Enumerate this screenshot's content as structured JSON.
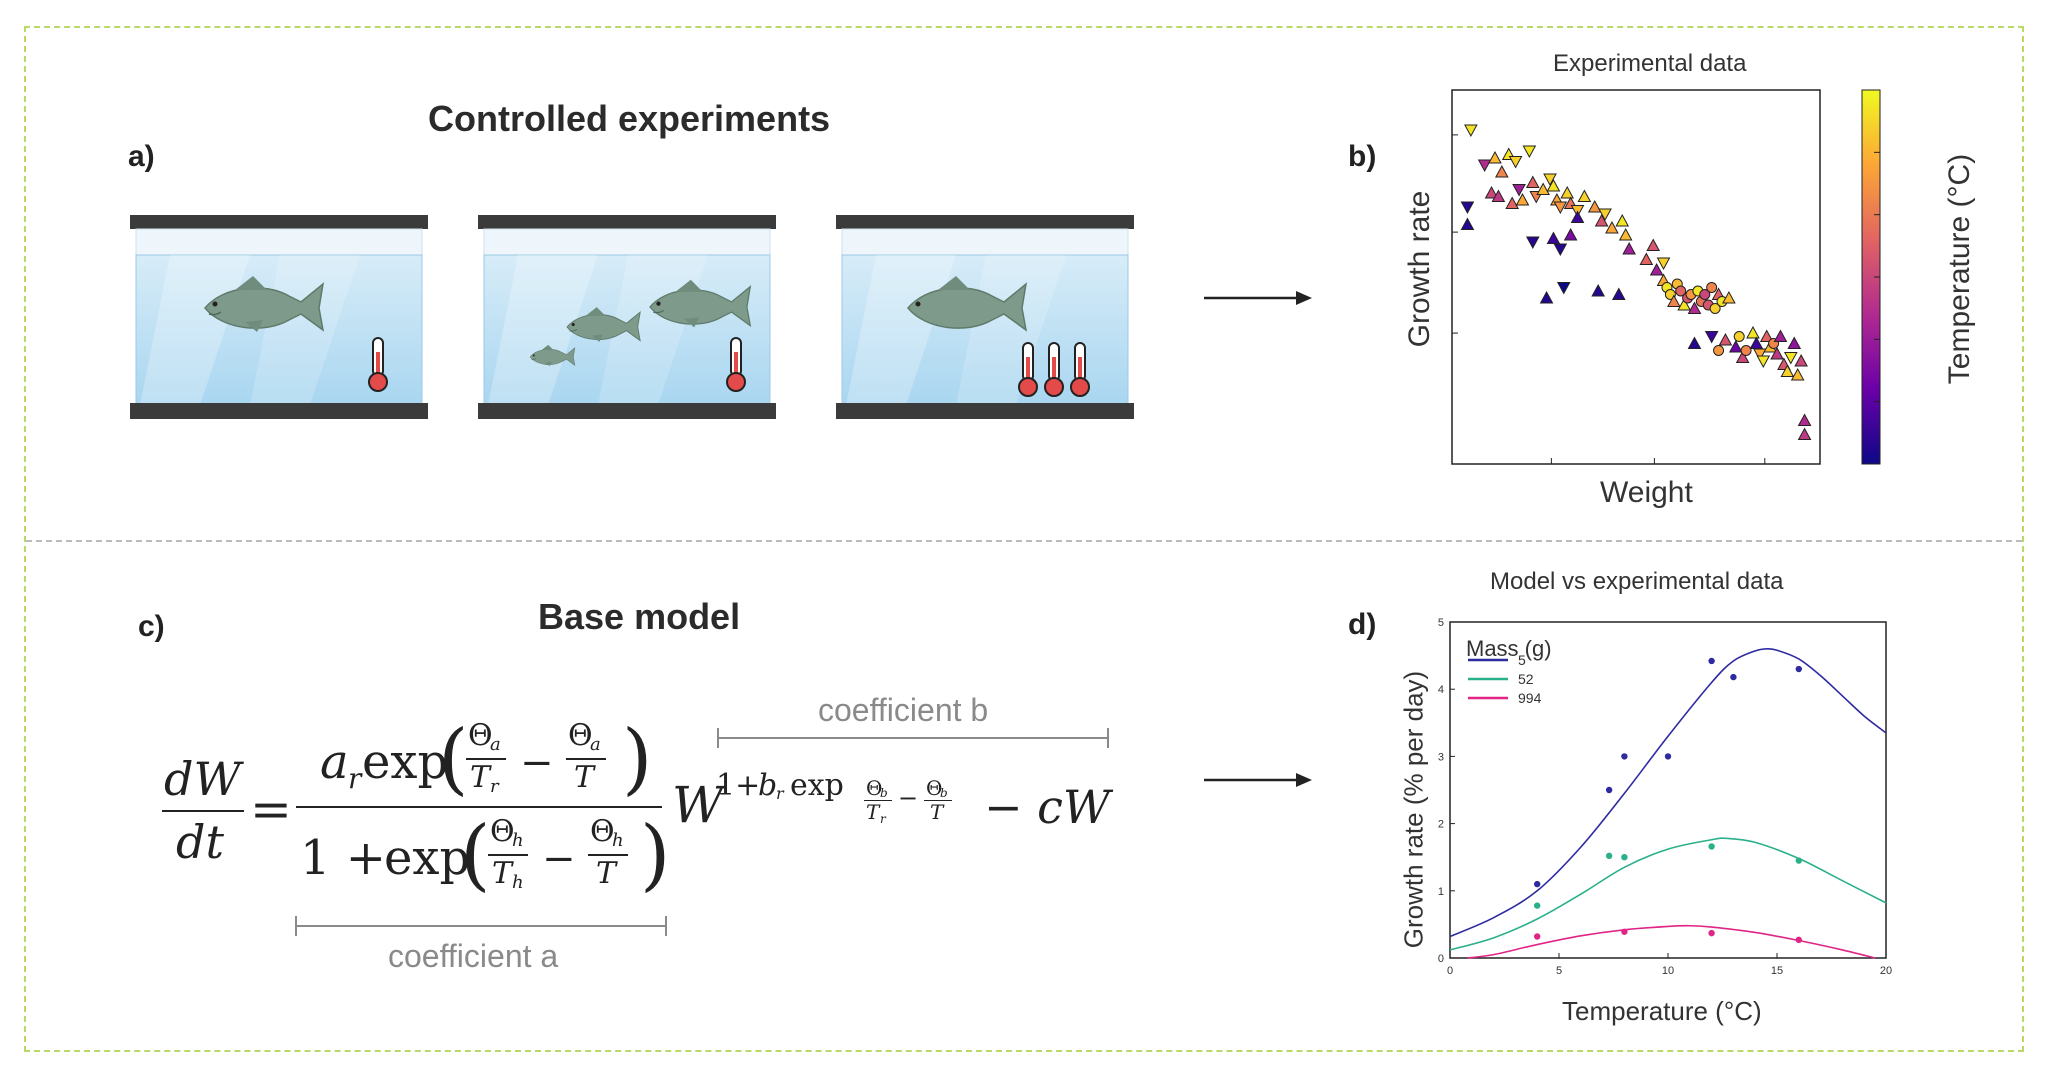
{
  "panel_a": {
    "letter": "a)",
    "title": "Controlled experiments"
  },
  "panel_b": {
    "letter": "b)",
    "chart_data": {
      "type": "scatter",
      "title": "Experimental data",
      "xlabel": "Weight",
      "ylabel": "Growth rate",
      "colorbar_label": "Temperature (°C)",
      "colormap": [
        "#0d0887",
        "#6a00a8",
        "#b12a90",
        "#e16462",
        "#fca636",
        "#f0f921"
      ],
      "xscale": "log",
      "yscale": "log",
      "markers": [
        "triangle-up",
        "triangle-down",
        "circle"
      ],
      "points": [
        [
          0.02,
          0.92,
          "down",
          0.95
        ],
        [
          0.01,
          0.7,
          "down",
          0.05
        ],
        [
          0.01,
          0.65,
          "up",
          0.05
        ],
        [
          0.06,
          0.82,
          "down",
          0.4
        ],
        [
          0.09,
          0.84,
          "up",
          0.85
        ],
        [
          0.11,
          0.8,
          "up",
          0.7
        ],
        [
          0.13,
          0.85,
          "up",
          0.95
        ],
        [
          0.15,
          0.83,
          "down",
          0.9
        ],
        [
          0.19,
          0.86,
          "down",
          0.95
        ],
        [
          0.08,
          0.74,
          "up",
          0.5
        ],
        [
          0.1,
          0.73,
          "up",
          0.45
        ],
        [
          0.14,
          0.71,
          "up",
          0.6
        ],
        [
          0.16,
          0.75,
          "down",
          0.35
        ],
        [
          0.17,
          0.72,
          "up",
          0.8
        ],
        [
          0.2,
          0.77,
          "up",
          0.6
        ],
        [
          0.21,
          0.73,
          "down",
          0.7
        ],
        [
          0.23,
          0.75,
          "up",
          0.85
        ],
        [
          0.25,
          0.78,
          "down",
          0.9
        ],
        [
          0.26,
          0.76,
          "up",
          0.95
        ],
        [
          0.27,
          0.72,
          "up",
          0.8
        ],
        [
          0.28,
          0.7,
          "down",
          0.75
        ],
        [
          0.3,
          0.74,
          "up",
          0.9
        ],
        [
          0.31,
          0.71,
          "up",
          0.65
        ],
        [
          0.33,
          0.69,
          "down",
          0.85
        ],
        [
          0.35,
          0.73,
          "up",
          0.9
        ],
        [
          0.38,
          0.7,
          "up",
          0.75
        ],
        [
          0.4,
          0.66,
          "up",
          0.55
        ],
        [
          0.41,
          0.68,
          "down",
          0.9
        ],
        [
          0.43,
          0.64,
          "up",
          0.8
        ],
        [
          0.46,
          0.66,
          "up",
          0.95
        ],
        [
          0.47,
          0.62,
          "up",
          0.85
        ],
        [
          0.48,
          0.58,
          "up",
          0.35
        ],
        [
          0.2,
          0.6,
          "down",
          0.05
        ],
        [
          0.26,
          0.61,
          "up",
          0.1
        ],
        [
          0.28,
          0.58,
          "down",
          0.05
        ],
        [
          0.31,
          0.62,
          "up",
          0.25
        ],
        [
          0.33,
          0.67,
          "up",
          0.1
        ],
        [
          0.24,
          0.44,
          "up",
          0.05
        ],
        [
          0.29,
          0.47,
          "down",
          0.0
        ],
        [
          0.39,
          0.46,
          "up",
          0.05
        ],
        [
          0.45,
          0.45,
          "up",
          0.05
        ],
        [
          0.53,
          0.55,
          "up",
          0.6
        ],
        [
          0.55,
          0.59,
          "up",
          0.55
        ],
        [
          0.56,
          0.52,
          "up",
          0.35
        ],
        [
          0.58,
          0.54,
          "down",
          0.9
        ],
        [
          0.58,
          0.49,
          "up",
          0.8
        ],
        [
          0.59,
          0.47,
          "circle",
          0.95
        ],
        [
          0.6,
          0.45,
          "circle",
          0.9
        ],
        [
          0.61,
          0.43,
          "up",
          0.7
        ],
        [
          0.62,
          0.48,
          "circle",
          0.85
        ],
        [
          0.63,
          0.46,
          "circle",
          0.6
        ],
        [
          0.64,
          0.42,
          "up",
          0.95
        ],
        [
          0.65,
          0.44,
          "circle",
          0.55
        ],
        [
          0.66,
          0.45,
          "circle",
          0.75
        ],
        [
          0.67,
          0.41,
          "up",
          0.4
        ],
        [
          0.68,
          0.46,
          "circle",
          0.95
        ],
        [
          0.69,
          0.43,
          "circle",
          0.65
        ],
        [
          0.7,
          0.45,
          "circle",
          0.5
        ],
        [
          0.71,
          0.42,
          "circle",
          0.55
        ],
        [
          0.72,
          0.47,
          "circle",
          0.7
        ],
        [
          0.73,
          0.41,
          "circle",
          0.9
        ],
        [
          0.74,
          0.45,
          "up",
          0.6
        ],
        [
          0.75,
          0.43,
          "circle",
          0.95
        ],
        [
          0.77,
          0.44,
          "up",
          0.85
        ],
        [
          0.67,
          0.31,
          "up",
          0.05
        ],
        [
          0.72,
          0.33,
          "down",
          0.1
        ],
        [
          0.74,
          0.29,
          "circle",
          0.75
        ],
        [
          0.76,
          0.32,
          "up",
          0.55
        ],
        [
          0.79,
          0.3,
          "up",
          0.2
        ],
        [
          0.8,
          0.33,
          "circle",
          0.9
        ],
        [
          0.81,
          0.27,
          "up",
          0.5
        ],
        [
          0.82,
          0.29,
          "circle",
          0.7
        ],
        [
          0.84,
          0.34,
          "up",
          0.95
        ],
        [
          0.85,
          0.31,
          "up",
          0.1
        ],
        [
          0.86,
          0.28,
          "down",
          0.8
        ],
        [
          0.87,
          0.26,
          "down",
          0.95
        ],
        [
          0.88,
          0.33,
          "up",
          0.6
        ],
        [
          0.89,
          0.3,
          "up",
          0.85
        ],
        [
          0.9,
          0.31,
          "circle",
          0.7
        ],
        [
          0.91,
          0.28,
          "up",
          0.45
        ],
        [
          0.92,
          0.33,
          "up",
          0.35
        ],
        [
          0.93,
          0.25,
          "up",
          0.55
        ],
        [
          0.94,
          0.23,
          "up",
          0.9
        ],
        [
          0.95,
          0.27,
          "down",
          0.95
        ],
        [
          0.96,
          0.31,
          "up",
          0.3
        ],
        [
          0.97,
          0.22,
          "up",
          0.85
        ],
        [
          0.98,
          0.26,
          "up",
          0.5
        ],
        [
          0.99,
          0.09,
          "up",
          0.4
        ],
        [
          0.99,
          0.05,
          "up",
          0.45
        ]
      ]
    }
  },
  "panel_c": {
    "letter": "c)",
    "title": "Base model",
    "coefficient_a_label": "coefficient a",
    "coefficient_b_label": "coefficient b",
    "equation": {
      "lhs_num": "dW",
      "lhs_den": "dt",
      "eq": "=",
      "num_ar": "a",
      "num_ar_sub": "r",
      "exp": "exp",
      "theta": "Θ",
      "sub_a": "a",
      "sub_h": "h",
      "sub_b": "b",
      "sub_r": "r",
      "T": "T",
      "minus": "−",
      "one_plus": "1 +",
      "W": "W",
      "pow_base": "1+",
      "pow_b": "b",
      "minus_cW": "− cW"
    }
  },
  "panel_d": {
    "letter": "d)",
    "chart_data": {
      "type": "line",
      "title": "Model vs experimental data",
      "xlabel": "Temperature (°C)",
      "ylabel": "Growth rate (% per day)",
      "xlim": [
        0,
        20
      ],
      "ylim": [
        0,
        5
      ],
      "xticks": [
        0,
        5,
        10,
        15,
        20
      ],
      "yticks": [
        0,
        1,
        2,
        3,
        4,
        5
      ],
      "legend_title": "Mass (g)",
      "legend_position": "top-left",
      "series": [
        {
          "name": "5",
          "color": "#2e2aa0",
          "curve": [
            [
              0,
              0.32
            ],
            [
              2,
              0.6
            ],
            [
              4,
              1.0
            ],
            [
              6,
              1.65
            ],
            [
              8,
              2.45
            ],
            [
              10,
              3.3
            ],
            [
              12,
              4.1
            ],
            [
              13,
              4.42
            ],
            [
              14,
              4.57
            ],
            [
              14.5,
              4.6
            ],
            [
              15,
              4.58
            ],
            [
              16,
              4.45
            ],
            [
              17,
              4.2
            ],
            [
              18,
              3.9
            ],
            [
              19,
              3.6
            ],
            [
              20,
              3.35
            ]
          ],
          "points": [
            [
              4,
              1.1
            ],
            [
              7.3,
              2.5
            ],
            [
              8,
              3.0
            ],
            [
              10,
              3.0
            ],
            [
              12,
              4.42
            ],
            [
              13,
              4.18
            ],
            [
              16,
              4.3
            ]
          ]
        },
        {
          "name": "52",
          "color": "#2ab08a",
          "curve": [
            [
              0,
              0.12
            ],
            [
              2,
              0.3
            ],
            [
              4,
              0.58
            ],
            [
              6,
              0.95
            ],
            [
              8,
              1.35
            ],
            [
              10,
              1.62
            ],
            [
              12,
              1.76
            ],
            [
              12.7,
              1.78
            ],
            [
              14,
              1.72
            ],
            [
              16,
              1.48
            ],
            [
              18,
              1.15
            ],
            [
              20,
              0.82
            ]
          ],
          "points": [
            [
              4,
              0.78
            ],
            [
              7.3,
              1.52
            ],
            [
              8,
              1.5
            ],
            [
              12,
              1.66
            ],
            [
              16,
              1.45
            ]
          ]
        },
        {
          "name": "994",
          "color": "#e02586",
          "curve": [
            [
              0.8,
              0
            ],
            [
              2,
              0.05
            ],
            [
              4,
              0.2
            ],
            [
              6,
              0.33
            ],
            [
              8,
              0.42
            ],
            [
              10,
              0.47
            ],
            [
              11,
              0.48
            ],
            [
              12,
              0.46
            ],
            [
              14,
              0.38
            ],
            [
              16,
              0.26
            ],
            [
              18,
              0.12
            ],
            [
              19.5,
              0
            ]
          ],
          "points": [
            [
              4,
              0.32
            ],
            [
              8,
              0.39
            ],
            [
              12,
              0.37
            ],
            [
              16,
              0.27
            ]
          ]
        }
      ]
    }
  }
}
